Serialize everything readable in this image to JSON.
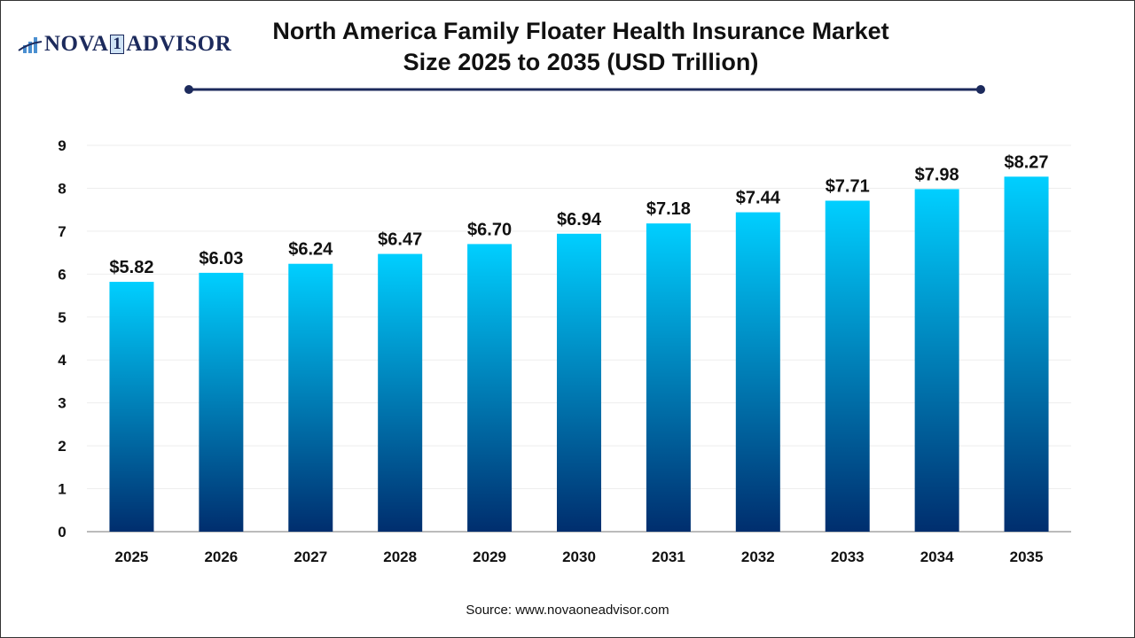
{
  "logo": {
    "text_left": "NOVA",
    "text_mid": "1",
    "text_right": "ADVISOR"
  },
  "chart_data": {
    "type": "bar",
    "title": "North America Family Floater Health Insurance Market Size 2025 to 2035 (USD Trillion)",
    "categories": [
      "2025",
      "2026",
      "2027",
      "2028",
      "2029",
      "2030",
      "2031",
      "2032",
      "2033",
      "2034",
      "2035"
    ],
    "values": [
      5.82,
      6.03,
      6.24,
      6.47,
      6.7,
      6.94,
      7.18,
      7.44,
      7.71,
      7.98,
      8.27
    ],
    "data_labels": [
      "$5.82",
      "$6.03",
      "$6.24",
      "$6.47",
      "$6.70",
      "$6.94",
      "$7.18",
      "$7.44",
      "$7.71",
      "$7.98",
      "$8.27"
    ],
    "yticks": [
      0,
      1,
      2,
      3,
      4,
      5,
      6,
      7,
      8,
      9
    ],
    "ylim": [
      0,
      9
    ],
    "xlabel": "",
    "ylabel": "",
    "grid": true,
    "colors": {
      "bar_top": "#00cfff",
      "bar_bottom": "#002e6e",
      "title_rule": "#1c2a5c"
    }
  },
  "source": "Source: www.novaoneadvisor.com"
}
